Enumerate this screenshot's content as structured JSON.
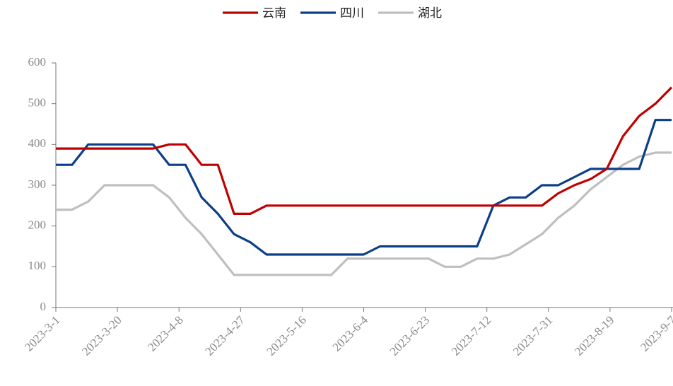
{
  "chart_data": {
    "type": "line",
    "x": [
      "2023-3-1",
      "2023-3-6",
      "2023-3-11",
      "2023-3-16",
      "2023-3-21",
      "2023-3-26",
      "2023-3-31",
      "2023-4-5",
      "2023-4-10",
      "2023-4-15",
      "2023-4-20",
      "2023-4-25",
      "2023-4-30",
      "2023-5-5",
      "2023-5-10",
      "2023-5-15",
      "2023-5-20",
      "2023-5-25",
      "2023-5-30",
      "2023-6-4",
      "2023-6-9",
      "2023-6-14",
      "2023-6-19",
      "2023-6-24",
      "2023-6-29",
      "2023-7-4",
      "2023-7-9",
      "2023-7-14",
      "2023-7-19",
      "2023-7-24",
      "2023-7-29",
      "2023-8-3",
      "2023-8-8",
      "2023-8-13",
      "2023-8-18",
      "2023-8-23",
      "2023-8-28",
      "2023-9-2",
      "2023-9-7"
    ],
    "series": [
      {
        "name": "云南",
        "color": "#c00000",
        "values": [
          390,
          390,
          390,
          390,
          390,
          390,
          390,
          400,
          400,
          350,
          350,
          230,
          230,
          250,
          250,
          250,
          250,
          250,
          250,
          250,
          250,
          250,
          250,
          250,
          250,
          250,
          250,
          250,
          250,
          250,
          250,
          280,
          300,
          315,
          340,
          420,
          470,
          500,
          540
        ]
      },
      {
        "name": "四川",
        "color": "#0b3f8a",
        "values": [
          350,
          350,
          400,
          400,
          400,
          400,
          400,
          350,
          350,
          270,
          230,
          180,
          160,
          130,
          130,
          130,
          130,
          130,
          130,
          130,
          150,
          150,
          150,
          150,
          150,
          150,
          150,
          250,
          270,
          270,
          300,
          300,
          320,
          340,
          340,
          340,
          340,
          460,
          460
        ]
      },
      {
        "name": "湖北",
        "color": "#bfbfbf",
        "values": [
          240,
          240,
          260,
          300,
          300,
          300,
          300,
          270,
          220,
          180,
          130,
          80,
          80,
          80,
          80,
          80,
          80,
          80,
          120,
          120,
          120,
          120,
          120,
          120,
          100,
          100,
          120,
          120,
          130,
          155,
          180,
          220,
          250,
          290,
          320,
          350,
          370,
          380,
          380
        ]
      }
    ],
    "xlim": [
      "2023-3-1",
      "2023-9-7"
    ],
    "xticks": [
      "2023-3-1",
      "2023-3-20",
      "2023-4-8",
      "2023-4-27",
      "2023-5-16",
      "2023-6-4",
      "2023-6-23",
      "2023-7-12",
      "2023-7-31",
      "2023-8-19",
      "2023-9-7"
    ],
    "ylim": [
      0,
      600
    ],
    "yticks": [
      0,
      100,
      200,
      300,
      400,
      500,
      600
    ],
    "legend": "top"
  }
}
